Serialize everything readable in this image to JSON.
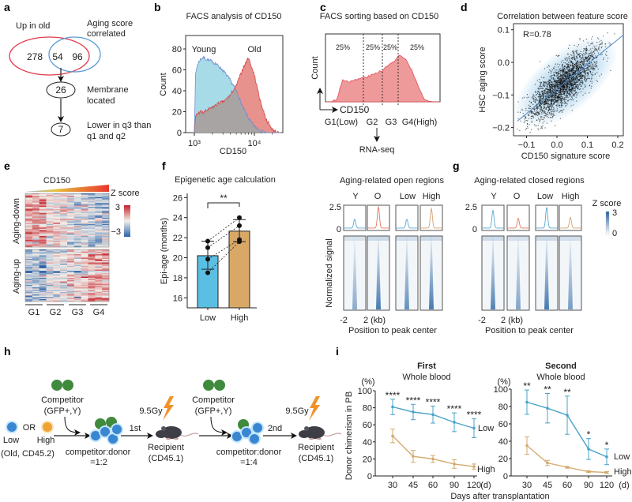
{
  "panel_labels": [
    "a",
    "b",
    "c",
    "d",
    "e",
    "f",
    "g",
    "h",
    "i"
  ],
  "panel_a": {
    "set1_label": "Up in old",
    "set2_label_line1": "Aging score",
    "set2_label_line2": "correlated",
    "only_set1": "278",
    "overlap": "54",
    "only_set2": "96",
    "step2_count": "26",
    "step2_label_line1": "Membrane",
    "step2_label_line2": "located",
    "step3_count": "7",
    "step3_label_line1": "Lower in q3 than",
    "step3_label_line2": "q1 and q2",
    "colors": {
      "set1": "#e0384a",
      "set2": "#5b9bd5"
    }
  },
  "panel_h": {
    "low_label": "Low",
    "or_label": "OR",
    "high_label": "High",
    "donor_label": "(Old, CD45.2)",
    "competitor_label": "Competitor",
    "competitor_sub": "(GFP+,Y)",
    "ratio_label": "competitor:donor",
    "ratio_1": "=1:2",
    "ratio_2": "=1:4",
    "step_1": "1st",
    "step_2": "2nd",
    "dose": "9.5Gy",
    "recipient_label": "Recipient",
    "recipient_sub": "(CD45.1)",
    "colors": {
      "competitor": "#3f8a3c",
      "low": "#3b86d1",
      "high": "#f0a232",
      "irradiation": "#f0922b",
      "mouse": "#3e3e46"
    }
  },
  "chart_data": [
    {
      "panel": "b",
      "type": "area",
      "title": "FACS analysis of CD150",
      "xlabel": "CD150",
      "ylabel": "Count",
      "x_scale": "log",
      "xticks": [
        "10³",
        "10⁴"
      ],
      "xtick_values": [
        1000,
        10000
      ],
      "yticks": [
        0,
        20,
        40,
        60,
        80
      ],
      "ylim": [
        0,
        93
      ],
      "series": [
        {
          "name": "Young",
          "color": "#a6dbe7",
          "line_color": "#6f8fcf",
          "x": [
            1000,
            1047,
            1122,
            1259,
            1413,
            1585,
            1995,
            2512,
            3162,
            3981,
            5012,
            6310,
            7943,
            10000,
            12589,
            15849
          ],
          "y": [
            0,
            55,
            65,
            70,
            72,
            70,
            68,
            64,
            58,
            50,
            40,
            25,
            14,
            6,
            2,
            0
          ]
        },
        {
          "name": "Old",
          "color": "#e8928e",
          "line_color": "#d8474a",
          "x": [
            1000,
            1047,
            1122,
            1259,
            1413,
            1585,
            1995,
            2512,
            3162,
            3981,
            5012,
            6310,
            7943,
            10000,
            12589,
            15849,
            19953,
            25119
          ],
          "y": [
            0,
            15,
            18,
            20,
            19,
            21,
            24,
            28,
            30,
            36,
            45,
            60,
            72,
            55,
            30,
            12,
            3,
            0
          ]
        }
      ],
      "overlap_color": "#a8a4a4"
    },
    {
      "panel": "c",
      "type": "area",
      "title": "FACS sorting based on CD150",
      "xlabel": "CD150",
      "ylabel": "Count",
      "relative_count": [
        0,
        0,
        0.05,
        0.38,
        0.35,
        0.36,
        0.4,
        0.42,
        0.45,
        0.5,
        0.55,
        0.62,
        0.7,
        0.8,
        0.72,
        0.55,
        0.3,
        0.08,
        0.01,
        0,
        0
      ],
      "gates": [
        "G1(Low)",
        "G2",
        "G3",
        "G4(High)"
      ],
      "gate_percent": [
        "25%",
        "25%",
        "25%",
        "25%"
      ],
      "downstream": "RNA-seq",
      "color": "#ef9a9a",
      "line_color": "#e04a55"
    },
    {
      "panel": "d",
      "type": "scatter",
      "title": "Correlation between feature score",
      "xlabel": "CD150 signature score",
      "ylabel": "HSC aging score",
      "annotation": "R=0.78",
      "xlim": [
        -0.2,
        0.223
      ],
      "ylim": [
        -0.224,
        0.119
      ],
      "xticks": [
        "−0.1",
        "0.0",
        "0.1",
        "0.2"
      ],
      "xtick_values": [
        -0.1,
        0.0,
        0.1,
        0.2
      ],
      "yticks": [
        "0.1",
        "0.0",
        "−0.1",
        "−0.2"
      ],
      "ytick_values": [
        0.1,
        0.0,
        -0.1,
        -0.2
      ],
      "fit_line": {
        "x": [
          -0.13,
          0.22
        ],
        "y": [
          -0.18,
          0.085
        ]
      },
      "point_color": "#111111",
      "density_color": "#8fc3e6",
      "line_color": "#4f86c6"
    },
    {
      "panel": "e",
      "type": "heatmap",
      "top_label": "CD150",
      "columns": [
        "G1",
        "G2",
        "G3",
        "G4"
      ],
      "replicates_per_group": 3,
      "row_groups": [
        "Aging-down",
        "Aging-up"
      ],
      "colorbar": {
        "title": "Z score",
        "ticks": [
          "3",
          "−3"
        ],
        "range": [
          -3,
          3
        ]
      },
      "colors": {
        "low": "#2a62a8",
        "mid": "#f3efe9",
        "high": "#c3232d"
      }
    },
    {
      "panel": "f",
      "type": "bar",
      "title": "Epigenetic age calculation",
      "ylabel": "Epi-age (months)",
      "categories": [
        "Low",
        "High"
      ],
      "values": [
        20.2,
        22.65
      ],
      "error": [
        [
          18.85,
          21.65
        ],
        [
          21.6,
          23.8
        ]
      ],
      "points": [
        [
          21.65,
          21.0,
          19.85,
          18.5
        ],
        [
          24.0,
          23.2,
          21.8,
          21.6
        ]
      ],
      "paired": true,
      "significance": "**",
      "ylim": [
        15,
        26
      ],
      "yticks": [
        16,
        18,
        20,
        22,
        24,
        26
      ],
      "colors": [
        "#5bbfe3",
        "#d9a867"
      ]
    },
    {
      "panel": "g",
      "type": "heatmap",
      "panels": [
        {
          "title": "Aging-related open regions",
          "columns": [
            "Y",
            "O",
            "Low",
            "High"
          ],
          "peak_height": [
            1.0,
            2.4,
            1.0,
            2.2
          ],
          "heat_intensity": [
            0.55,
            0.9,
            0.75,
            0.9
          ]
        },
        {
          "title": "Aging-related closed regions",
          "columns": [
            "Y",
            "O",
            "Low",
            "High"
          ],
          "peak_height": [
            2.0,
            1.1,
            2.3,
            1.2
          ],
          "heat_intensity": [
            0.85,
            0.6,
            0.9,
            0.65
          ]
        }
      ],
      "profile_yticks": [
        "2.5",
        "0"
      ],
      "profile_ylim": [
        0,
        2.5
      ],
      "xticks": [
        "-2",
        "2 (kb)"
      ],
      "xlabel": "Position to peak center",
      "ylabel": "Normalized signal",
      "colorbar": {
        "title": "Z score",
        "ticks": [
          "3",
          "0"
        ],
        "range": [
          0,
          3
        ]
      },
      "colors": {
        "young_low": "#5aa8d6",
        "old": "#e07a5f",
        "high": "#d4a373",
        "heat": "#1f5fa0"
      }
    },
    {
      "panel": "i",
      "type": "line",
      "title": "First",
      "subtitle": "Whole blood",
      "ylabel": "Donor chimerism in PB",
      "yunit": "(%)",
      "shared_xlabel": "Days after transplantation",
      "x": [
        "30",
        "45",
        "60",
        "90",
        "120"
      ],
      "xunit": "(d)",
      "ylim": [
        0,
        100
      ],
      "yticks": [
        0,
        20,
        40,
        60,
        80,
        100
      ],
      "series": [
        {
          "name": "Low",
          "color": "#4aa3c8",
          "values": [
            81,
            75,
            72,
            63,
            56
          ],
          "error": [
            9,
            9,
            10,
            11,
            11
          ]
        },
        {
          "name": "High",
          "color": "#d4aa6e",
          "values": [
            47,
            23,
            20,
            14,
            11
          ],
          "error": [
            8,
            7,
            4,
            5,
            3
          ]
        }
      ],
      "significance": [
        "****",
        "****",
        "****",
        "****",
        "****"
      ]
    },
    {
      "panel": "i",
      "type": "line",
      "title": "Second",
      "subtitle": "Whole blood",
      "yunit": "(%)",
      "x": [
        "30",
        "45",
        "60",
        "90",
        "120"
      ],
      "xunit": "(d)",
      "ylim": [
        0,
        100
      ],
      "yticks": [
        0,
        20,
        40,
        60,
        80,
        100
      ],
      "series": [
        {
          "name": "Low",
          "color": "#4aa3c8",
          "values": [
            85,
            78,
            70,
            31,
            22
          ],
          "error": [
            14,
            17,
            22,
            12,
            9
          ]
        },
        {
          "name": "High",
          "color": "#d4aa6e",
          "values": [
            35,
            15,
            10,
            5,
            4
          ],
          "error": [
            10,
            3,
            1,
            1,
            1
          ]
        }
      ],
      "significance": [
        "**",
        "**",
        "**",
        "*",
        "*"
      ]
    }
  ]
}
